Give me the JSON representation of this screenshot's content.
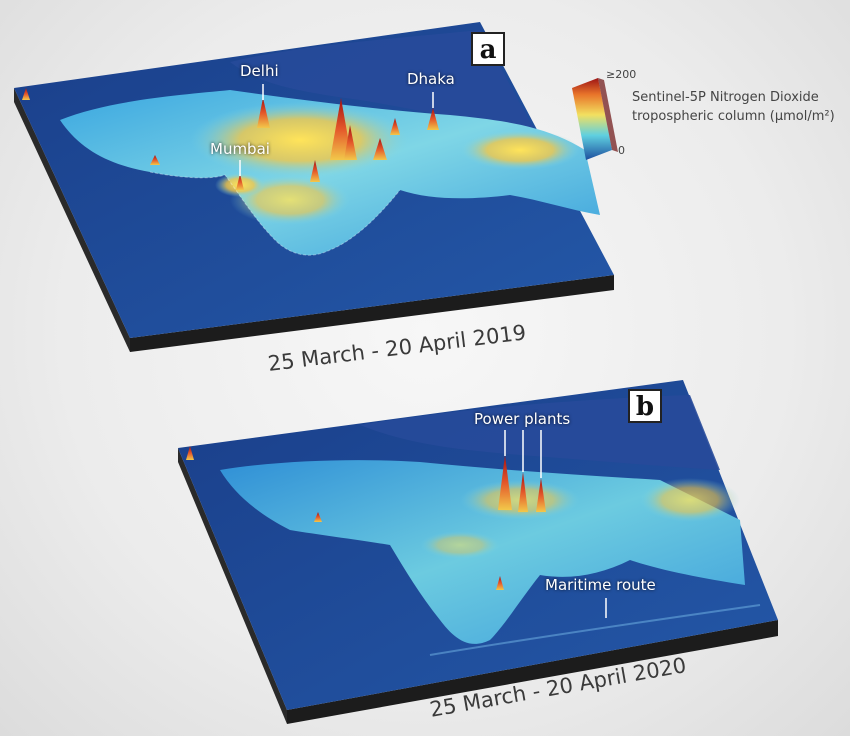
{
  "panel_a": {
    "label": "a",
    "period": "25 March - 20 April 2019",
    "cities": [
      {
        "id": "delhi",
        "name": "Delhi"
      },
      {
        "id": "dhaka",
        "name": "Dhaka"
      },
      {
        "id": "mumbai",
        "name": "Mumbai"
      }
    ]
  },
  "panel_b": {
    "label": "b",
    "period": "25 March - 20 April 2020",
    "annotations": [
      {
        "id": "power-plants",
        "name": "Power plants"
      },
      {
        "id": "maritime-route",
        "name": "Maritime route"
      }
    ]
  },
  "legend": {
    "title_line1": "Sentinel-5P Nitrogen Dioxide",
    "title_line2": "tropospheric column (µmol/m²)",
    "max_label": "≥200",
    "min_label": "0"
  },
  "colors": {
    "ocean": "#1e4f9e",
    "land_low": "#2f8fd6",
    "land_mid": "#5fd0e0",
    "land_high": "#f2e060",
    "peak": "#c81e1e",
    "base": "#2a2a2a"
  }
}
